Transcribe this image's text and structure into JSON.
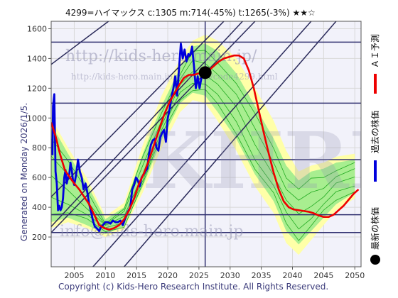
{
  "header": {
    "title": "4299=ハイマックス    c:1305  m:714(-45%)  t:1265(-3%)  ★★☆"
  },
  "side_note": "Generated on Monday 2026/1/5.",
  "footer": "Copyright (c) Kids-Hero Research Institute. All Rights Reserved.",
  "watermarks": {
    "url_main": "http://kids-hero.main.jp/",
    "url_sub": "http://kids-hero.main.jp/analysis/code4299.html",
    "email": "info@kids-hero.main.jp",
    "logo": "KHRI"
  },
  "legend": [
    {
      "label": "ＡＩ予測",
      "color": "#ee0000"
    },
    {
      "label": "過去の株価",
      "color": "#0000dd"
    },
    {
      "label": "最新の株価",
      "color": "#000000"
    }
  ],
  "colors": {
    "band_outer": "#ffffa8",
    "band_inner": "#a8ee90",
    "green_line": "#22aa22",
    "trend_line": "#2a2a5a",
    "h_line": "#303070",
    "grid": "#d8d8d8",
    "background": "#f2f2fa"
  },
  "chart_data": {
    "type": "line",
    "xlim": [
      2001.3,
      2051
    ],
    "ylim": [
      0,
      1650
    ],
    "x_ticks": [
      2005,
      2010,
      2015,
      2020,
      2025,
      2030,
      2035,
      2040,
      2045,
      2050
    ],
    "y_ticks": [
      200,
      400,
      600,
      800,
      1000,
      1200,
      1400,
      1600
    ],
    "h_lines": [
      1510,
      1100,
      720,
      350,
      230
    ],
    "v_line": 2026.0,
    "latest_point": {
      "x": 2026.0,
      "y": 1305
    },
    "trend_lines": [
      [
        [
          2001.3,
          1360
        ],
        [
          2010.5,
          1650
        ]
      ],
      [
        [
          2001.3,
          470
        ],
        [
          2029,
          1650
        ]
      ],
      [
        [
          2001.3,
          270
        ],
        [
          2032,
          1650
        ]
      ],
      [
        [
          2001.3,
          230
        ],
        [
          2034,
          1650
        ]
      ],
      [
        [
          2008,
          0
        ],
        [
          2043,
          1650
        ]
      ],
      [
        [
          2013,
          0
        ],
        [
          2047,
          1650
        ]
      ]
    ],
    "series": [
      {
        "name": "過去の株価",
        "color": "#0000dd",
        "points": [
          [
            2001.5,
            750
          ],
          [
            2001.6,
            1080
          ],
          [
            2001.8,
            1160
          ],
          [
            2001.9,
            900
          ],
          [
            2002.0,
            640
          ],
          [
            2002.2,
            560
          ],
          [
            2002.4,
            380
          ],
          [
            2002.6,
            410
          ],
          [
            2002.8,
            380
          ],
          [
            2003.0,
            400
          ],
          [
            2003.2,
            460
          ],
          [
            2003.4,
            600
          ],
          [
            2003.6,
            650
          ],
          [
            2003.8,
            560
          ],
          [
            2004.0,
            600
          ],
          [
            2004.2,
            620
          ],
          [
            2004.4,
            700
          ],
          [
            2004.6,
            650
          ],
          [
            2004.8,
            580
          ],
          [
            2005.0,
            550
          ],
          [
            2005.3,
            620
          ],
          [
            2005.6,
            720
          ],
          [
            2005.9,
            640
          ],
          [
            2006.2,
            600
          ],
          [
            2006.5,
            520
          ],
          [
            2006.8,
            560
          ],
          [
            2007.1,
            500
          ],
          [
            2007.4,
            420
          ],
          [
            2007.7,
            370
          ],
          [
            2008.0,
            310
          ],
          [
            2008.3,
            270
          ],
          [
            2008.6,
            260
          ],
          [
            2009.0,
            240
          ],
          [
            2009.3,
            270
          ],
          [
            2009.6,
            280
          ],
          [
            2010.0,
            300
          ],
          [
            2010.4,
            300
          ],
          [
            2010.8,
            290
          ],
          [
            2011.2,
            310
          ],
          [
            2011.6,
            300
          ],
          [
            2012.0,
            300
          ],
          [
            2012.4,
            310
          ],
          [
            2012.8,
            280
          ],
          [
            2013.2,
            330
          ],
          [
            2013.6,
            370
          ],
          [
            2014.0,
            400
          ],
          [
            2014.3,
            520
          ],
          [
            2014.6,
            550
          ],
          [
            2014.9,
            600
          ],
          [
            2015.2,
            580
          ],
          [
            2015.5,
            540
          ],
          [
            2015.8,
            600
          ],
          [
            2016.1,
            620
          ],
          [
            2016.4,
            640
          ],
          [
            2016.7,
            660
          ],
          [
            2017.0,
            760
          ],
          [
            2017.3,
            820
          ],
          [
            2017.6,
            850
          ],
          [
            2017.9,
            860
          ],
          [
            2018.2,
            800
          ],
          [
            2018.5,
            780
          ],
          [
            2018.8,
            870
          ],
          [
            2019.1,
            900
          ],
          [
            2019.4,
            920
          ],
          [
            2019.7,
            840
          ],
          [
            2020.0,
            1000
          ],
          [
            2020.3,
            1060
          ],
          [
            2020.6,
            1140
          ],
          [
            2020.9,
            1200
          ],
          [
            2021.2,
            1280
          ],
          [
            2021.5,
            1150
          ],
          [
            2021.8,
            1330
          ],
          [
            2022.1,
            1500
          ],
          [
            2022.4,
            1400
          ],
          [
            2022.7,
            1460
          ],
          [
            2023.0,
            1380
          ],
          [
            2023.3,
            1430
          ],
          [
            2023.6,
            1420
          ],
          [
            2023.9,
            1480
          ],
          [
            2024.2,
            1350
          ],
          [
            2024.5,
            1200
          ],
          [
            2024.8,
            1280
          ],
          [
            2025.1,
            1200
          ],
          [
            2025.4,
            1270
          ],
          [
            2025.7,
            1300
          ]
        ]
      },
      {
        "name": "ＡＩ予測",
        "color": "#ee0000",
        "points": [
          [
            2001.3,
            970
          ],
          [
            2002,
            880
          ],
          [
            2002.7,
            760
          ],
          [
            2003.5,
            650
          ],
          [
            2004.3,
            600
          ],
          [
            2005.0,
            560
          ],
          [
            2005.8,
            520
          ],
          [
            2006.6,
            470
          ],
          [
            2007.4,
            420
          ],
          [
            2008.2,
            350
          ],
          [
            2009.0,
            280
          ],
          [
            2009.8,
            260
          ],
          [
            2010.6,
            250
          ],
          [
            2011.4,
            260
          ],
          [
            2012.2,
            280
          ],
          [
            2013.0,
            320
          ],
          [
            2013.8,
            380
          ],
          [
            2014.6,
            460
          ],
          [
            2015.4,
            560
          ],
          [
            2016.2,
            630
          ],
          [
            2017.0,
            720
          ],
          [
            2017.8,
            820
          ],
          [
            2018.6,
            920
          ],
          [
            2019.4,
            1020
          ],
          [
            2020.2,
            1100
          ],
          [
            2021.0,
            1160
          ],
          [
            2021.8,
            1220
          ],
          [
            2022.6,
            1270
          ],
          [
            2023.4,
            1290
          ],
          [
            2024.2,
            1290
          ],
          [
            2025.0,
            1300
          ],
          [
            2025.8,
            1305
          ],
          [
            2026.6,
            1320
          ],
          [
            2027.4,
            1350
          ],
          [
            2028.2,
            1380
          ],
          [
            2029.0,
            1400
          ],
          [
            2029.8,
            1410
          ],
          [
            2030.6,
            1420
          ],
          [
            2031.4,
            1420
          ],
          [
            2032.2,
            1400
          ],
          [
            2033.0,
            1320
          ],
          [
            2033.8,
            1200
          ],
          [
            2034.6,
            1050
          ],
          [
            2035.4,
            900
          ],
          [
            2036.2,
            760
          ],
          [
            2037.0,
            630
          ],
          [
            2037.8,
            520
          ],
          [
            2038.6,
            440
          ],
          [
            2039.4,
            400
          ],
          [
            2040.2,
            385
          ],
          [
            2041.0,
            380
          ],
          [
            2041.8,
            375
          ],
          [
            2042.6,
            370
          ],
          [
            2043.4,
            360
          ],
          [
            2044.2,
            345
          ],
          [
            2045.0,
            335
          ],
          [
            2045.8,
            335
          ],
          [
            2046.6,
            350
          ],
          [
            2047.4,
            380
          ],
          [
            2048.2,
            410
          ],
          [
            2049.0,
            450
          ],
          [
            2049.8,
            490
          ],
          [
            2050.6,
            520
          ]
        ]
      }
    ],
    "band_outer_upper": [
      [
        2001.3,
        1000
      ],
      [
        2004,
        800
      ],
      [
        2007,
        600
      ],
      [
        2010,
        340
      ],
      [
        2013,
        430
      ],
      [
        2016,
        820
      ],
      [
        2019,
        1150
      ],
      [
        2022,
        1400
      ],
      [
        2024,
        1520
      ],
      [
        2026,
        1560
      ],
      [
        2028,
        1520
      ],
      [
        2031,
        1400
      ],
      [
        2034,
        1200
      ],
      [
        2037,
        980
      ],
      [
        2039,
        780
      ],
      [
        2041,
        640
      ],
      [
        2043,
        680
      ],
      [
        2045,
        700
      ],
      [
        2047,
        740
      ],
      [
        2050,
        760
      ]
    ],
    "band_outer_lower": [
      [
        2001.3,
        260
      ],
      [
        2004,
        300
      ],
      [
        2007,
        260
      ],
      [
        2010,
        200
      ],
      [
        2013,
        250
      ],
      [
        2016,
        500
      ],
      [
        2019,
        800
      ],
      [
        2022,
        1040
      ],
      [
        2024,
        1120
      ],
      [
        2026,
        1100
      ],
      [
        2028,
        980
      ],
      [
        2031,
        780
      ],
      [
        2034,
        540
      ],
      [
        2037,
        360
      ],
      [
        2039,
        160
      ],
      [
        2041,
        80
      ],
      [
        2043,
        180
      ],
      [
        2045,
        280
      ],
      [
        2047,
        380
      ],
      [
        2050,
        460
      ]
    ],
    "band_inner_upper": [
      [
        2001.3,
        960
      ],
      [
        2004,
        760
      ],
      [
        2007,
        560
      ],
      [
        2010,
        320
      ],
      [
        2013,
        400
      ],
      [
        2016,
        760
      ],
      [
        2019,
        1080
      ],
      [
        2022,
        1340
      ],
      [
        2024,
        1480
      ],
      [
        2026,
        1500
      ],
      [
        2028,
        1450
      ],
      [
        2031,
        1300
      ],
      [
        2034,
        1080
      ],
      [
        2037,
        860
      ],
      [
        2039,
        680
      ],
      [
        2041,
        580
      ],
      [
        2043,
        640
      ],
      [
        2045,
        660
      ],
      [
        2047,
        700
      ],
      [
        2050,
        720
      ]
    ],
    "band_inner_lower": [
      [
        2001.3,
        300
      ],
      [
        2004,
        330
      ],
      [
        2007,
        280
      ],
      [
        2010,
        220
      ],
      [
        2013,
        270
      ],
      [
        2016,
        540
      ],
      [
        2019,
        850
      ],
      [
        2022,
        1100
      ],
      [
        2024,
        1170
      ],
      [
        2026,
        1150
      ],
      [
        2028,
        1040
      ],
      [
        2031,
        860
      ],
      [
        2034,
        620
      ],
      [
        2037,
        440
      ],
      [
        2039,
        240
      ],
      [
        2041,
        150
      ],
      [
        2043,
        240
      ],
      [
        2045,
        330
      ],
      [
        2047,
        420
      ],
      [
        2050,
        500
      ]
    ]
  }
}
